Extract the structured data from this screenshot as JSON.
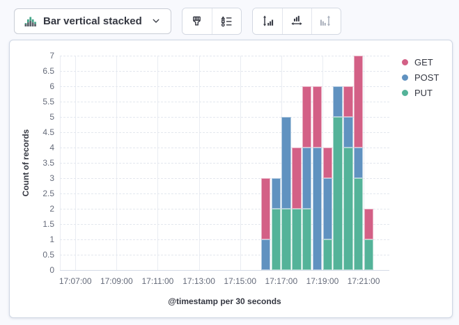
{
  "toolbar": {
    "chart_switch": {
      "label": "Bar vertical stacked",
      "icon": "bar-vertical-stacked-icon",
      "chevron_icon": "chevron-down-icon"
    },
    "style_group": {
      "buttons": [
        {
          "icon": "brush-icon"
        },
        {
          "icon": "legend-list-icon"
        }
      ]
    },
    "axis_group": {
      "buttons": [
        {
          "icon": "left-axis-icon",
          "disabled": false
        },
        {
          "icon": "bottom-axis-icon",
          "disabled": false
        },
        {
          "icon": "right-axis-icon",
          "disabled": true
        }
      ]
    }
  },
  "colors": {
    "get": "#D36086",
    "post": "#6092C0",
    "put": "#54B399",
    "icon_green": "#43A587",
    "icon_gray": "#5a6069",
    "panel_border": "#cfd7e4",
    "page_bg": "#f8f9fd"
  },
  "chart_data": {
    "type": "bar",
    "stacked": true,
    "orientation": "vertical",
    "title": "",
    "xlabel": "@timestamp per 30 seconds",
    "ylabel": "Count of records",
    "ylim": [
      0,
      7
    ],
    "y_ticks": [
      0,
      0.5,
      1,
      1.5,
      2,
      2.5,
      3,
      3.5,
      4,
      4.5,
      5,
      5.5,
      6,
      6.5,
      7
    ],
    "x_ticks": [
      "17:07:00",
      "17:09:00",
      "17:11:00",
      "17:13:00",
      "17:15:00",
      "17:17:00",
      "17:19:00",
      "17:21:00"
    ],
    "x_domain": [
      "17:06:15",
      "17:22:15"
    ],
    "bucket_seconds": 30,
    "grid": {
      "horizontal": "dashed",
      "vertical": "solid"
    },
    "categories": [
      "17:16:00",
      "17:16:30",
      "17:17:00",
      "17:17:30",
      "17:18:00",
      "17:18:30",
      "17:19:00",
      "17:19:30",
      "17:20:00",
      "17:20:30",
      "17:21:00"
    ],
    "series": [
      {
        "name": "GET",
        "color": "#D36086",
        "values": [
          2,
          0,
          0,
          2,
          2,
          2,
          1,
          0,
          1,
          3,
          1
        ]
      },
      {
        "name": "POST",
        "color": "#6092C0",
        "values": [
          1,
          1,
          3,
          0,
          2,
          4,
          2,
          1,
          1,
          1,
          0
        ]
      },
      {
        "name": "PUT",
        "color": "#54B399",
        "values": [
          0,
          2,
          2,
          2,
          2,
          0,
          1,
          5,
          4,
          3,
          1
        ]
      }
    ],
    "stack_order_bottom_to_top": [
      "PUT",
      "POST",
      "GET"
    ],
    "legend": {
      "position": "top-right",
      "items": [
        "GET",
        "POST",
        "PUT"
      ]
    }
  }
}
